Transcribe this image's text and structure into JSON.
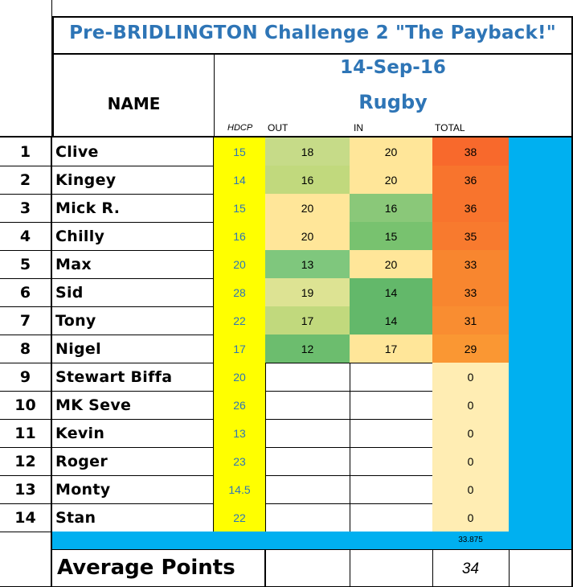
{
  "title": "Pre-BRIDLINGTON Challenge 2 \"The Payback!\"",
  "date": "14-Sep-16",
  "venue": "Rugby",
  "name_header": "NAME",
  "columns": {
    "hdcp": "HDCP",
    "out": "OUT",
    "in": "IN",
    "total": "TOTAL"
  },
  "rows": [
    {
      "pos": "1",
      "name": "Clive",
      "hdcp": "15",
      "out": "18",
      "in": "20",
      "total": "38"
    },
    {
      "pos": "2",
      "name": "Kingey",
      "hdcp": "14",
      "out": "16",
      "in": "20",
      "total": "36"
    },
    {
      "pos": "3",
      "name": "Mick R.",
      "hdcp": "15",
      "out": "20",
      "in": "16",
      "total": "36"
    },
    {
      "pos": "4",
      "name": "Chilly",
      "hdcp": "16",
      "out": "20",
      "in": "15",
      "total": "35"
    },
    {
      "pos": "5",
      "name": "Max",
      "hdcp": "20",
      "out": "13",
      "in": "20",
      "total": "33"
    },
    {
      "pos": "6",
      "name": "Sid",
      "hdcp": "28",
      "out": "19",
      "in": "14",
      "total": "33"
    },
    {
      "pos": "7",
      "name": "Tony",
      "hdcp": "22",
      "out": "17",
      "in": "14",
      "total": "31"
    },
    {
      "pos": "8",
      "name": "Nigel",
      "hdcp": "17",
      "out": "12",
      "in": "17",
      "total": "29"
    },
    {
      "pos": "9",
      "name": "Stewart Biffa",
      "hdcp": "20",
      "out": "",
      "in": "",
      "total": "0"
    },
    {
      "pos": "10",
      "name": "MK Seve",
      "hdcp": "26",
      "out": "",
      "in": "",
      "total": "0"
    },
    {
      "pos": "11",
      "name": "Kevin",
      "hdcp": "13",
      "out": "",
      "in": "",
      "total": "0"
    },
    {
      "pos": "12",
      "name": "Roger",
      "hdcp": "23",
      "out": "",
      "in": "",
      "total": "0"
    },
    {
      "pos": "13",
      "name": "Monty",
      "hdcp": "14.5",
      "out": "",
      "in": "",
      "total": "0"
    },
    {
      "pos": "14",
      "name": "Stan",
      "hdcp": "22",
      "out": "",
      "in": "",
      "total": "0"
    }
  ],
  "exact_average": "33.875",
  "average_label": "Average Points",
  "average_value": "34",
  "colors": {
    "title_text": "#2e75b6",
    "hdcp_fill": "#ffff00",
    "accent_cyan": "#00b0f0",
    "out": [
      "#c6db88",
      "#c1d97d",
      "#ffe699",
      "#ffe699",
      "#7fc77d",
      "#dde393",
      "#c1d97d",
      "#6cbd6e"
    ],
    "in": [
      "#ffe699",
      "#ffe699",
      "#8ac879",
      "#78c26f",
      "#ffe699",
      "#63b86a",
      "#63b86a",
      "#ffe699"
    ],
    "total": [
      "#f8692c",
      "#f8742d",
      "#f8742d",
      "#f87a2e",
      "#f8862f",
      "#f8862f",
      "#f98d31",
      "#fa9733",
      "#ffedb3",
      "#ffedb3",
      "#ffedb3",
      "#ffedb3",
      "#ffedb3",
      "#ffedb3"
    ]
  }
}
